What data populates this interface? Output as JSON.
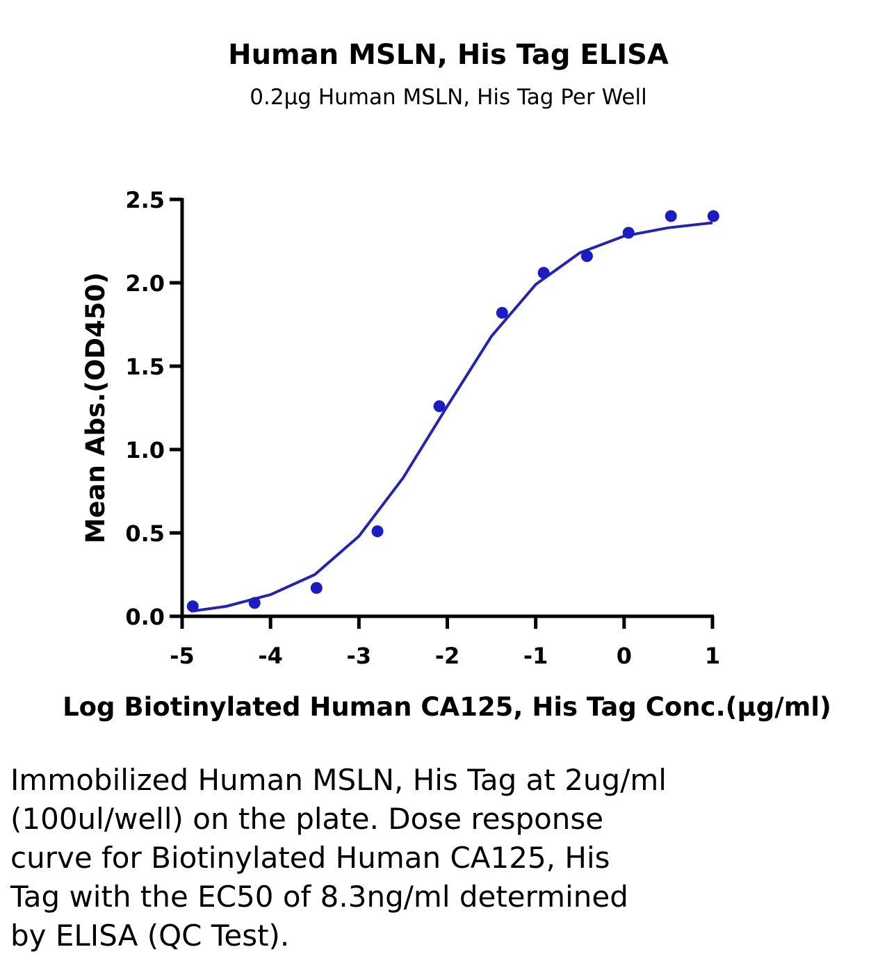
{
  "chart_data": {
    "type": "scatter",
    "title": "Human MSLN, His Tag ELISA",
    "subtitle": "0.2μg Human MSLN, His Tag Per Well",
    "x_label": "Log Biotinylated Human CA125, His Tag Conc.(μg/ml)",
    "y_label": "Mean Abs.(OD450)",
    "xlim": [
      -5,
      1
    ],
    "xticks": [
      -5,
      -4,
      -3,
      -2,
      -1,
      0,
      1
    ],
    "ylim": [
      0,
      2.5
    ],
    "yticks": [
      {
        "value": 0,
        "label": "0.0"
      },
      0.5,
      {
        "value": 1,
        "label": "1.0"
      },
      1.5,
      {
        "value": 2,
        "label": "2.0"
      },
      2.5
    ],
    "points": {
      "color": "#1c1cc0",
      "x": [
        -4.88,
        -4.18,
        -3.48,
        -2.79,
        -2.09,
        -1.38,
        -0.91,
        -0.42,
        0.05,
        0.53,
        1.01
      ],
      "y": [
        0.06,
        0.08,
        0.17,
        0.51,
        1.26,
        1.82,
        2.06,
        2.16,
        2.3,
        2.4,
        2.4
      ]
    },
    "curve": {
      "color": "#2424b0",
      "x": [
        -4.9,
        -4.5,
        -4,
        -3.5,
        -3,
        -2.5,
        -2,
        -1.5,
        -1,
        -0.5,
        0,
        0.5,
        1
      ],
      "y": [
        0.03,
        0.06,
        0.13,
        0.25,
        0.48,
        0.83,
        1.26,
        1.68,
        1.99,
        2.18,
        2.28,
        2.33,
        2.36
      ]
    }
  },
  "caption": {
    "lines": [
      "Immobilized Human MSLN, His Tag at 2ug/ml",
      "(100ul/well) on the plate. Dose response",
      "curve for Biotinylated Human CA125, His",
      "Tag with the EC50 of 8.3ng/ml determined",
      "by ELISA (QC Test)."
    ]
  }
}
